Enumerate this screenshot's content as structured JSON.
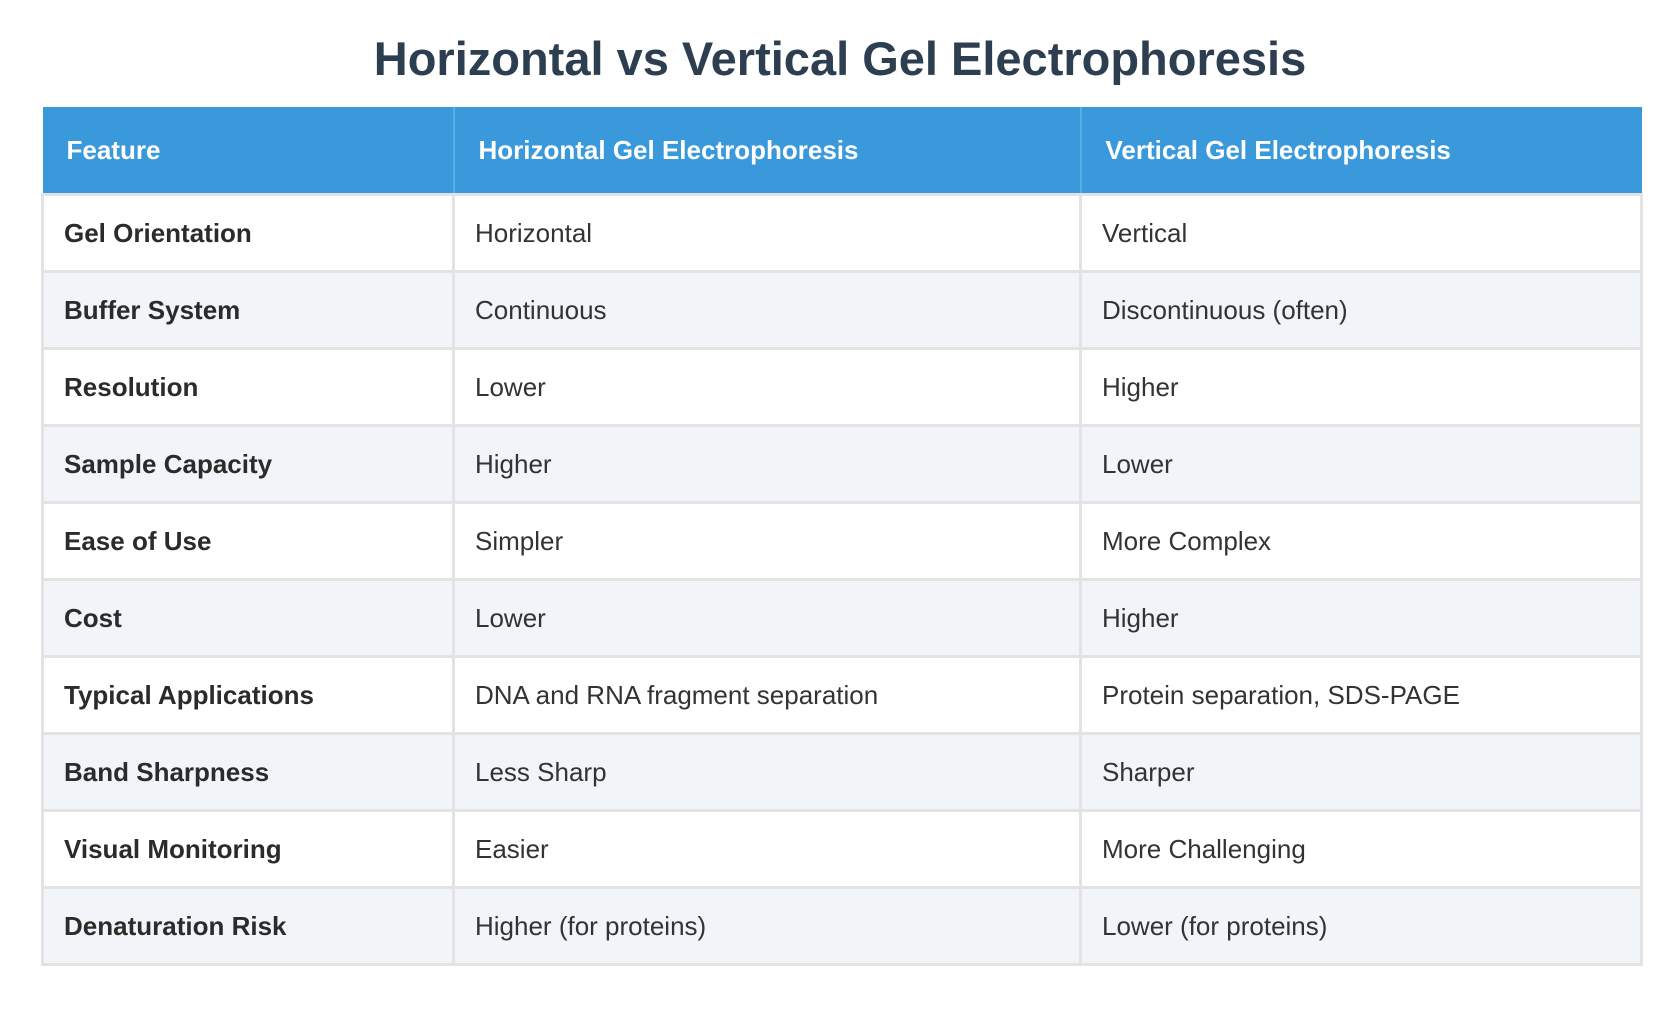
{
  "title": "Horizontal vs Vertical Gel Electrophoresis",
  "table": {
    "headers": [
      "Feature",
      "Horizontal Gel Electrophoresis",
      "Vertical Gel Electrophoresis"
    ],
    "rows": [
      [
        "Gel Orientation",
        "Horizontal",
        "Vertical"
      ],
      [
        "Buffer System",
        "Continuous",
        "Discontinuous (often)"
      ],
      [
        "Resolution",
        "Lower",
        "Higher"
      ],
      [
        "Sample Capacity",
        "Higher",
        "Lower"
      ],
      [
        "Ease of Use",
        "Simpler",
        "More Complex"
      ],
      [
        "Cost",
        "Lower",
        "Higher"
      ],
      [
        "Typical Applications",
        "DNA and RNA fragment separation",
        "Protein separation, SDS-PAGE"
      ],
      [
        "Band Sharpness",
        "Less Sharp",
        "Sharper"
      ],
      [
        "Visual Monitoring",
        "Easier",
        "More Challenging"
      ],
      [
        "Denaturation Risk",
        "Higher (for proteins)",
        "Lower (for proteins)"
      ]
    ]
  },
  "colors": {
    "header_background": "#3a99db",
    "title_text": "#2c3e50",
    "alternate_row": "#f1f4f8"
  }
}
